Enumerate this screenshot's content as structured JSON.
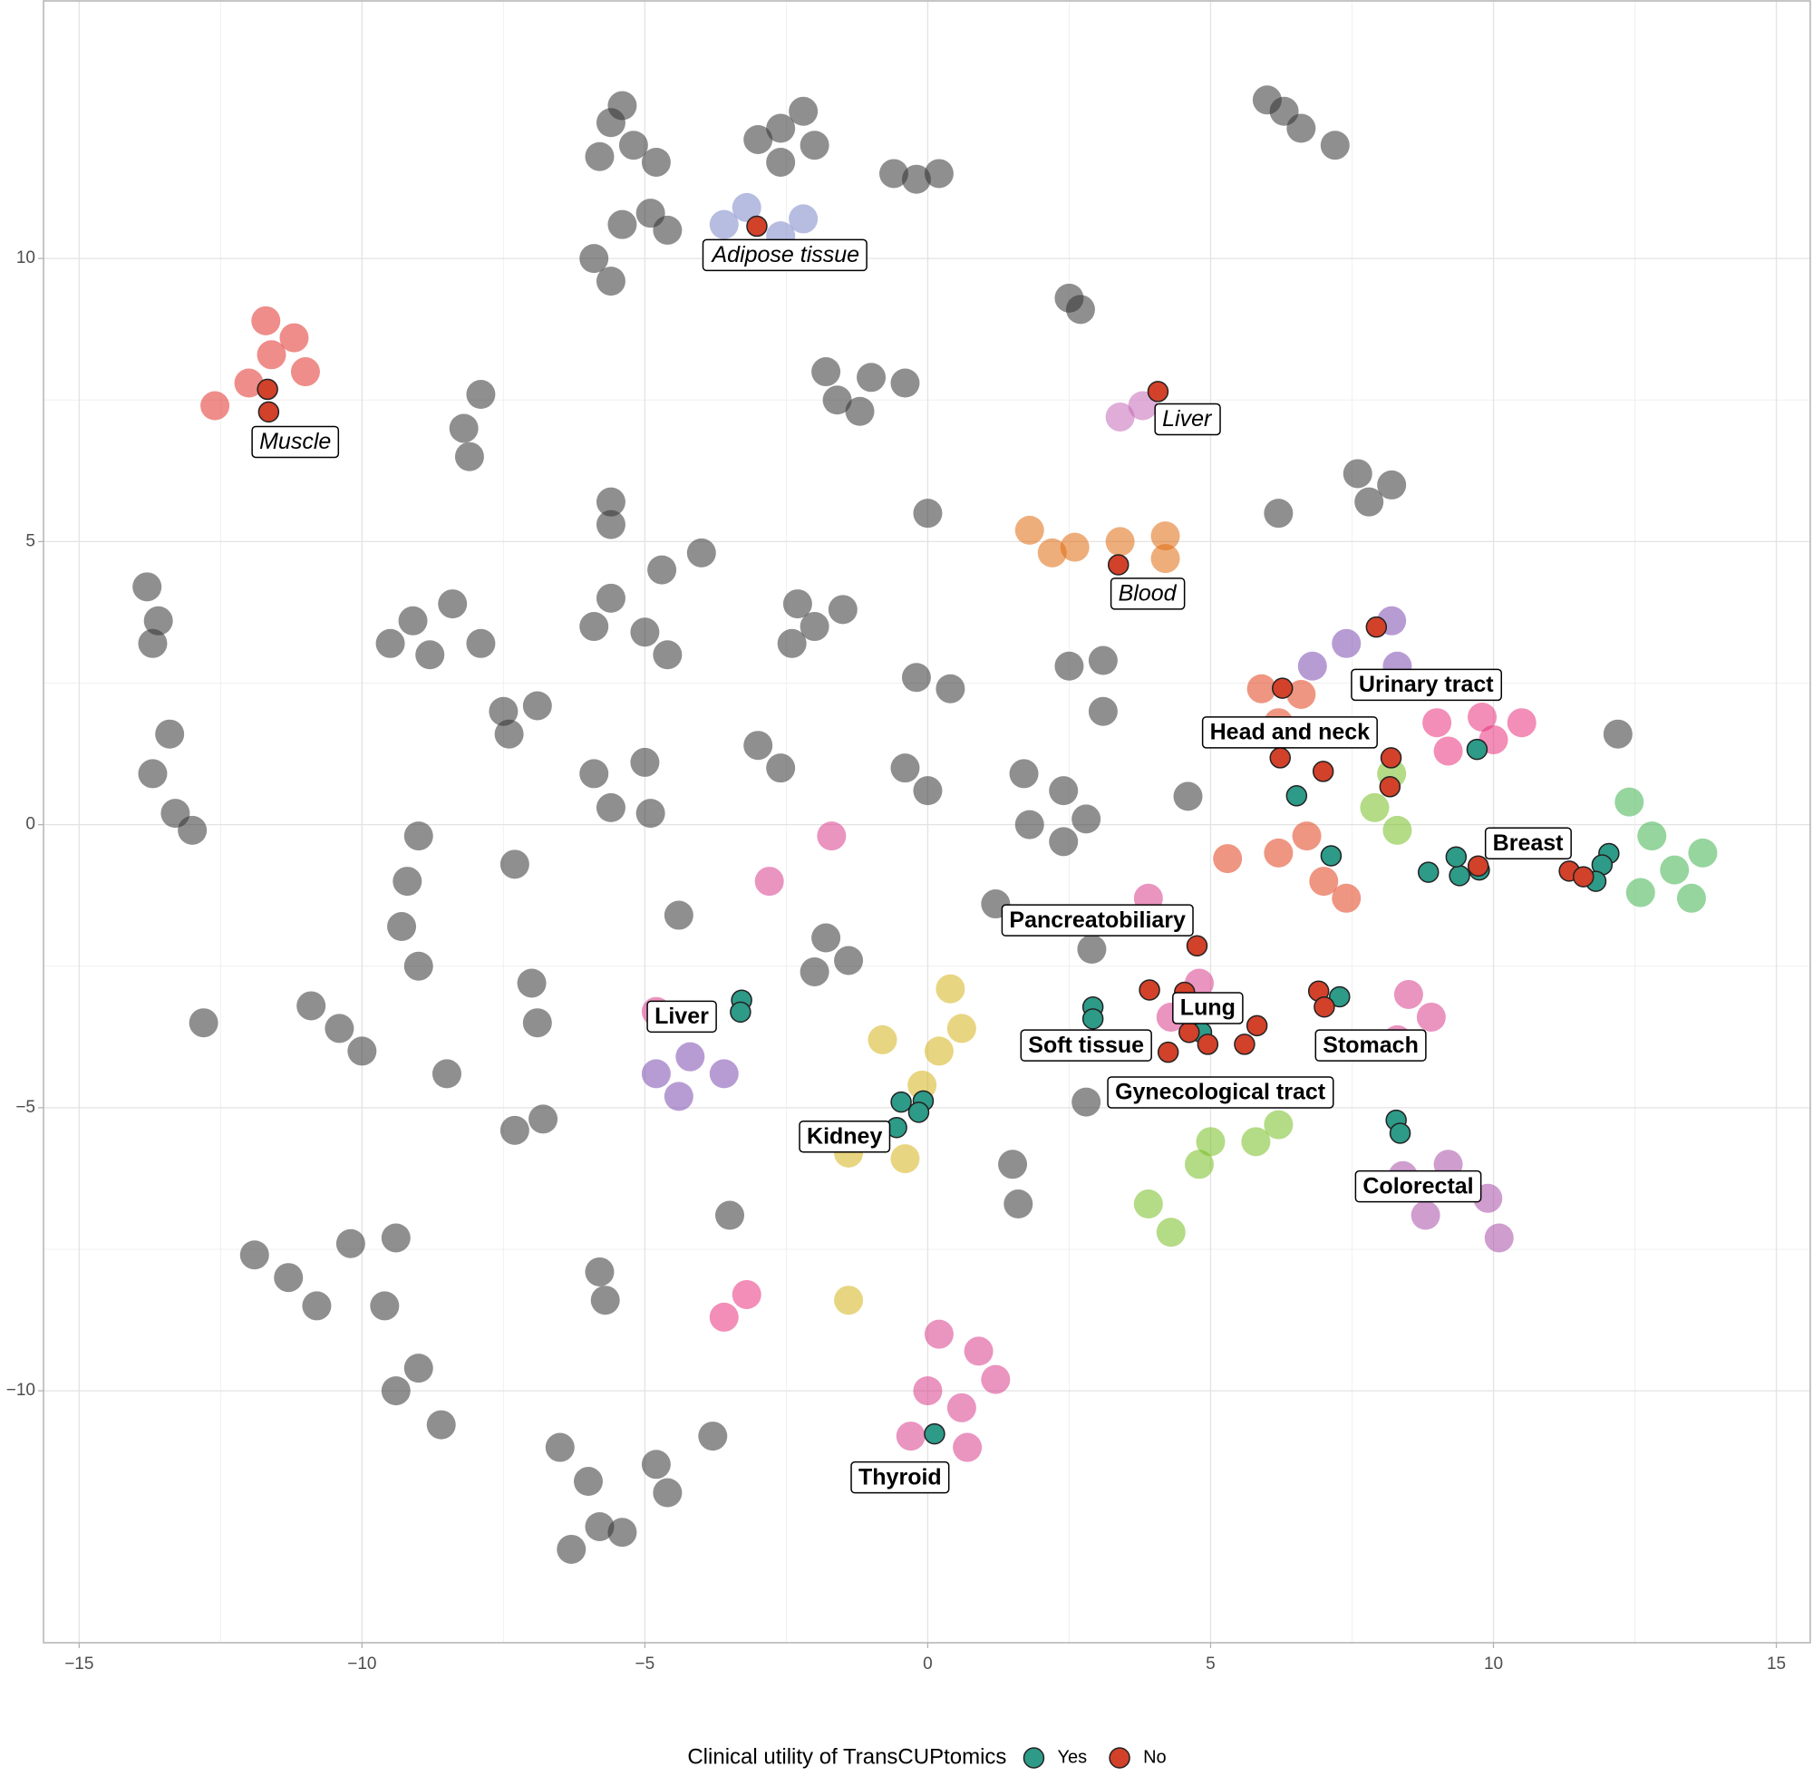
{
  "chart_data": {
    "type": "scatter",
    "xlim": [
      -15.63,
      15.6
    ],
    "ylim": [
      -14.45,
      14.55
    ],
    "xticks": [
      {
        "value": -15,
        "label": "−15"
      },
      {
        "value": -10,
        "label": "−10"
      },
      {
        "value": -5,
        "label": "−5"
      },
      0,
      5,
      10,
      15
    ],
    "yticks": [
      {
        "value": -10,
        "label": "−10"
      },
      {
        "value": -5,
        "label": "−5"
      },
      0,
      5,
      10
    ],
    "grid": true,
    "legend_title": "Clinical utility of TransCUPtomics",
    "legend_position": "bottom",
    "clusters": [
      {
        "color": "#333333",
        "x": [
          -5.6,
          -5.2,
          -5.8,
          -5.4,
          -4.8,
          -2.6,
          -2.0,
          -2.6,
          -2.2,
          -3.0,
          -0.2,
          0.2,
          -0.6,
          6.0,
          6.6,
          7.2,
          6.3,
          -5.4,
          -4.9,
          -5.9,
          -5.6,
          -4.6,
          2.5,
          2.7,
          -1.8,
          -1.0,
          -1.6,
          -0.4,
          -1.2,
          -8.2,
          -7.9,
          -8.1,
          7.6,
          8.2,
          7.8,
          6.2,
          0.0,
          -5.6,
          -5.6,
          -13.8,
          -13.6,
          -13.7,
          -9.1,
          -8.4,
          -8.8,
          -9.5,
          -7.9,
          -5.6,
          -5.0,
          -4.6,
          -5.9,
          -4.7,
          -4.0,
          -2.3,
          -2.0,
          -2.4,
          -1.5,
          -0.2,
          0.4,
          2.5,
          3.1,
          3.1,
          -7.5,
          -6.9,
          -7.4,
          -5.9,
          -5.0,
          -5.6,
          -4.9,
          -3.0,
          -2.6,
          -0.4,
          0.0,
          1.7,
          2.4,
          2.8,
          1.8,
          2.4,
          -13.7,
          -13.3,
          -13.0,
          -13.4,
          -9.0,
          -9.2,
          -9.3,
          -9.0,
          -7.3,
          -4.4,
          -1.8,
          -1.4,
          -2.0,
          -7.0,
          -6.9,
          -10.9,
          -10.4,
          -10.0,
          -12.8,
          -8.5,
          -7.3,
          -6.8,
          1.5,
          1.6,
          -5.8,
          -5.7,
          -11.9,
          -11.3,
          -10.8,
          -10.2,
          -9.4,
          -9.6,
          -9.0,
          -8.6,
          -9.4,
          -6.5,
          -6.0,
          -5.8,
          -6.3,
          -5.4,
          -4.6,
          -3.8,
          -4.8,
          -3.5,
          4.6,
          1.2,
          2.9,
          2.8,
          12.2
        ],
        "y": [
          12.4,
          12.0,
          11.8,
          12.7,
          11.7,
          12.3,
          12.0,
          11.7,
          12.6,
          12.1,
          11.4,
          11.5,
          11.5,
          12.8,
          12.3,
          12.0,
          12.6,
          10.6,
          10.8,
          10.0,
          9.6,
          10.5,
          9.3,
          9.1,
          8.0,
          7.9,
          7.5,
          7.8,
          7.3,
          7.0,
          7.6,
          6.5,
          6.2,
          6.0,
          5.7,
          5.5,
          5.5,
          5.7,
          5.3,
          4.2,
          3.6,
          3.2,
          3.6,
          3.9,
          3.0,
          3.2,
          3.2,
          4.0,
          3.4,
          3.0,
          3.5,
          4.5,
          4.8,
          3.9,
          3.5,
          3.2,
          3.8,
          2.6,
          2.4,
          2.8,
          2.9,
          2.0,
          2.0,
          2.1,
          1.6,
          0.9,
          1.1,
          0.3,
          0.2,
          1.4,
          1.0,
          1.0,
          0.6,
          0.9,
          0.6,
          0.1,
          0.0,
          -0.3,
          0.9,
          0.2,
          -0.1,
          1.6,
          -0.2,
          -1.0,
          -1.8,
          -2.5,
          -0.7,
          -1.6,
          -2.0,
          -2.4,
          -2.6,
          -2.8,
          -3.5,
          -3.2,
          -3.6,
          -4.0,
          -3.5,
          -4.4,
          -5.4,
          -5.2,
          -6.0,
          -6.7,
          -7.9,
          -8.4,
          -7.6,
          -8.0,
          -8.5,
          -7.4,
          -7.3,
          -8.5,
          -9.6,
          -10.6,
          -10.0,
          -11.0,
          -11.6,
          -12.4,
          -12.8,
          -12.5,
          -11.8,
          -10.8,
          -11.3,
          -6.9,
          0.5,
          -1.4,
          -2.2,
          -4.9,
          1.6
        ]
      },
      {
        "color": "#e0302a",
        "x": [
          -12.6,
          -12.0,
          -11.6,
          -11.2,
          -11.7,
          -11.0
        ],
        "y": [
          7.4,
          7.8,
          8.3,
          8.6,
          8.9,
          8.0
        ]
      },
      {
        "color": "#7b85c8",
        "x": [
          -3.6,
          -2.6,
          -2.2,
          -3.2
        ],
        "y": [
          10.6,
          10.4,
          10.7,
          10.9
        ]
      },
      {
        "color": "#c56ab8",
        "x": [
          3.4,
          3.8
        ],
        "y": [
          7.2,
          7.4
        ]
      },
      {
        "color": "#e06c10",
        "x": [
          1.8,
          2.6,
          3.4,
          4.2,
          4.2,
          2.2
        ],
        "y": [
          5.2,
          4.9,
          5.0,
          5.1,
          4.7,
          4.8
        ]
      },
      {
        "color": "#7b4ab0",
        "x": [
          7.4,
          8.2,
          8.3,
          6.8,
          -4.8,
          -4.2,
          -4.4,
          -3.6
        ],
        "y": [
          3.2,
          3.6,
          2.8,
          2.8,
          -4.4,
          -4.1,
          -4.8,
          -4.4
        ]
      },
      {
        "color": "#e0401c",
        "x": [
          5.9,
          6.6,
          6.2,
          5.3,
          6.2,
          7.0,
          7.4,
          6.7
        ],
        "y": [
          2.4,
          2.3,
          1.8,
          -0.6,
          -0.5,
          -1.0,
          -1.3,
          -0.2
        ]
      },
      {
        "color": "#e8327c",
        "x": [
          9.0,
          9.8,
          10.5,
          9.2,
          10.0,
          -3.6,
          -3.2
        ],
        "y": [
          1.8,
          1.9,
          1.8,
          1.3,
          1.5,
          -8.7,
          -8.3
        ]
      },
      {
        "color": "#3fb34f",
        "x": [
          12.4,
          12.8,
          13.2,
          13.5,
          12.6,
          13.7
        ],
        "y": [
          0.4,
          -0.2,
          -0.8,
          -1.3,
          -1.2,
          -0.5
        ]
      },
      {
        "color": "#76bd22",
        "x": [
          8.2,
          7.9,
          8.3,
          5.0,
          5.8,
          3.9,
          4.3,
          6.2,
          4.8
        ],
        "y": [
          0.9,
          0.3,
          -0.1,
          -5.6,
          -5.6,
          -6.7,
          -7.2,
          -5.3,
          -6.0
        ]
      },
      {
        "color": "#d83c8c",
        "x": [
          3.9,
          4.8,
          4.3,
          8.5,
          8.9,
          8.3,
          0.2,
          0.9,
          0.0,
          0.6,
          -0.3,
          0.7,
          1.2,
          -4.8,
          -1.7,
          -2.8
        ],
        "y": [
          -1.3,
          -2.8,
          -3.4,
          -3.0,
          -3.4,
          -3.8,
          -9.0,
          -9.3,
          -10.0,
          -10.3,
          -10.8,
          -11.0,
          -9.8,
          -3.3,
          -0.2,
          -1.0
        ]
      },
      {
        "color": "#a84ea8",
        "x": [
          8.4,
          9.2,
          9.9,
          10.1,
          8.8
        ],
        "y": [
          -6.2,
          -6.0,
          -6.6,
          -7.3,
          -6.9
        ]
      },
      {
        "color": "#d4b21a",
        "x": [
          0.4,
          0.6,
          0.2,
          -0.1,
          -0.8,
          -1.4,
          -0.4,
          -1.4
        ],
        "y": [
          -2.9,
          -3.6,
          -4.0,
          -4.6,
          -3.8,
          -5.8,
          -5.9,
          -8.4
        ]
      }
    ],
    "series": [
      {
        "name": "Yes",
        "color": "#2e9a88",
        "x": [
          6.52,
          7.13,
          9.71,
          8.85,
          9.4,
          9.34,
          9.75,
          12.04,
          11.92,
          11.81,
          7.28,
          2.92,
          2.92,
          4.84,
          8.28,
          8.35,
          -0.47,
          -0.08,
          -0.16,
          -0.55,
          0.12,
          -3.29,
          -3.31
        ],
        "y": [
          0.51,
          -0.55,
          1.33,
          -0.84,
          -0.9,
          -0.57,
          -0.8,
          -0.51,
          -0.71,
          -1.0,
          -3.04,
          -3.22,
          -3.43,
          -3.67,
          -5.22,
          -5.45,
          -4.9,
          -4.88,
          -5.08,
          -5.35,
          -10.76,
          -3.1,
          -3.31
        ]
      },
      {
        "name": "No",
        "color": "#d2412a",
        "x": [
          -3.02,
          -11.67,
          -11.65,
          4.07,
          3.37,
          7.93,
          6.27,
          6.23,
          6.99,
          8.19,
          8.17,
          9.73,
          11.34,
          11.59,
          4.76,
          3.92,
          6.91,
          7.01,
          4.54,
          5.82,
          5.6,
          4.62,
          4.25,
          4.95
        ],
        "y": [
          10.57,
          7.69,
          7.29,
          7.65,
          4.59,
          3.49,
          2.41,
          1.18,
          0.94,
          1.18,
          0.67,
          -0.73,
          -0.82,
          -0.92,
          -2.14,
          -2.92,
          -2.94,
          -3.22,
          -2.96,
          -3.55,
          -3.88,
          -3.67,
          -4.02,
          -3.88
        ]
      }
    ],
    "annotations": [
      {
        "text": "Adipose tissue",
        "x": -2.51,
        "y": 10.06,
        "style": "italic"
      },
      {
        "text": "Muscle",
        "x": -11.18,
        "y": 6.76,
        "style": "italic"
      },
      {
        "text": "Liver",
        "x": 4.58,
        "y": 7.16,
        "style": "italic"
      },
      {
        "text": "Blood",
        "x": 3.88,
        "y": 4.08,
        "style": "italic"
      },
      {
        "text": "Urinary tract",
        "x": 8.81,
        "y": 2.47,
        "style": "bold"
      },
      {
        "text": "Head and neck",
        "x": 6.4,
        "y": 1.63,
        "style": "bold"
      },
      {
        "text": "Breast",
        "x": 10.61,
        "y": -0.33,
        "style": "bold"
      },
      {
        "text": "Pancreatobiliary",
        "x": 3.0,
        "y": -1.69,
        "style": "bold"
      },
      {
        "text": "Lung",
        "x": 4.95,
        "y": -3.24,
        "style": "bold"
      },
      {
        "text": "Soft tissue",
        "x": 2.8,
        "y": -3.9,
        "style": "bold"
      },
      {
        "text": "Stomach",
        "x": 7.83,
        "y": -3.9,
        "style": "bold"
      },
      {
        "text": "Gynecological tract",
        "x": 5.17,
        "y": -4.73,
        "style": "bold"
      },
      {
        "text": "Liver",
        "x": -4.35,
        "y": -3.39,
        "style": "bold"
      },
      {
        "text": "Kidney",
        "x": -1.47,
        "y": -5.51,
        "style": "bold"
      },
      {
        "text": "Colorectal",
        "x": 8.67,
        "y": -6.39,
        "style": "bold"
      },
      {
        "text": "Thyroid",
        "x": -0.49,
        "y": -11.53,
        "style": "bold"
      }
    ]
  }
}
